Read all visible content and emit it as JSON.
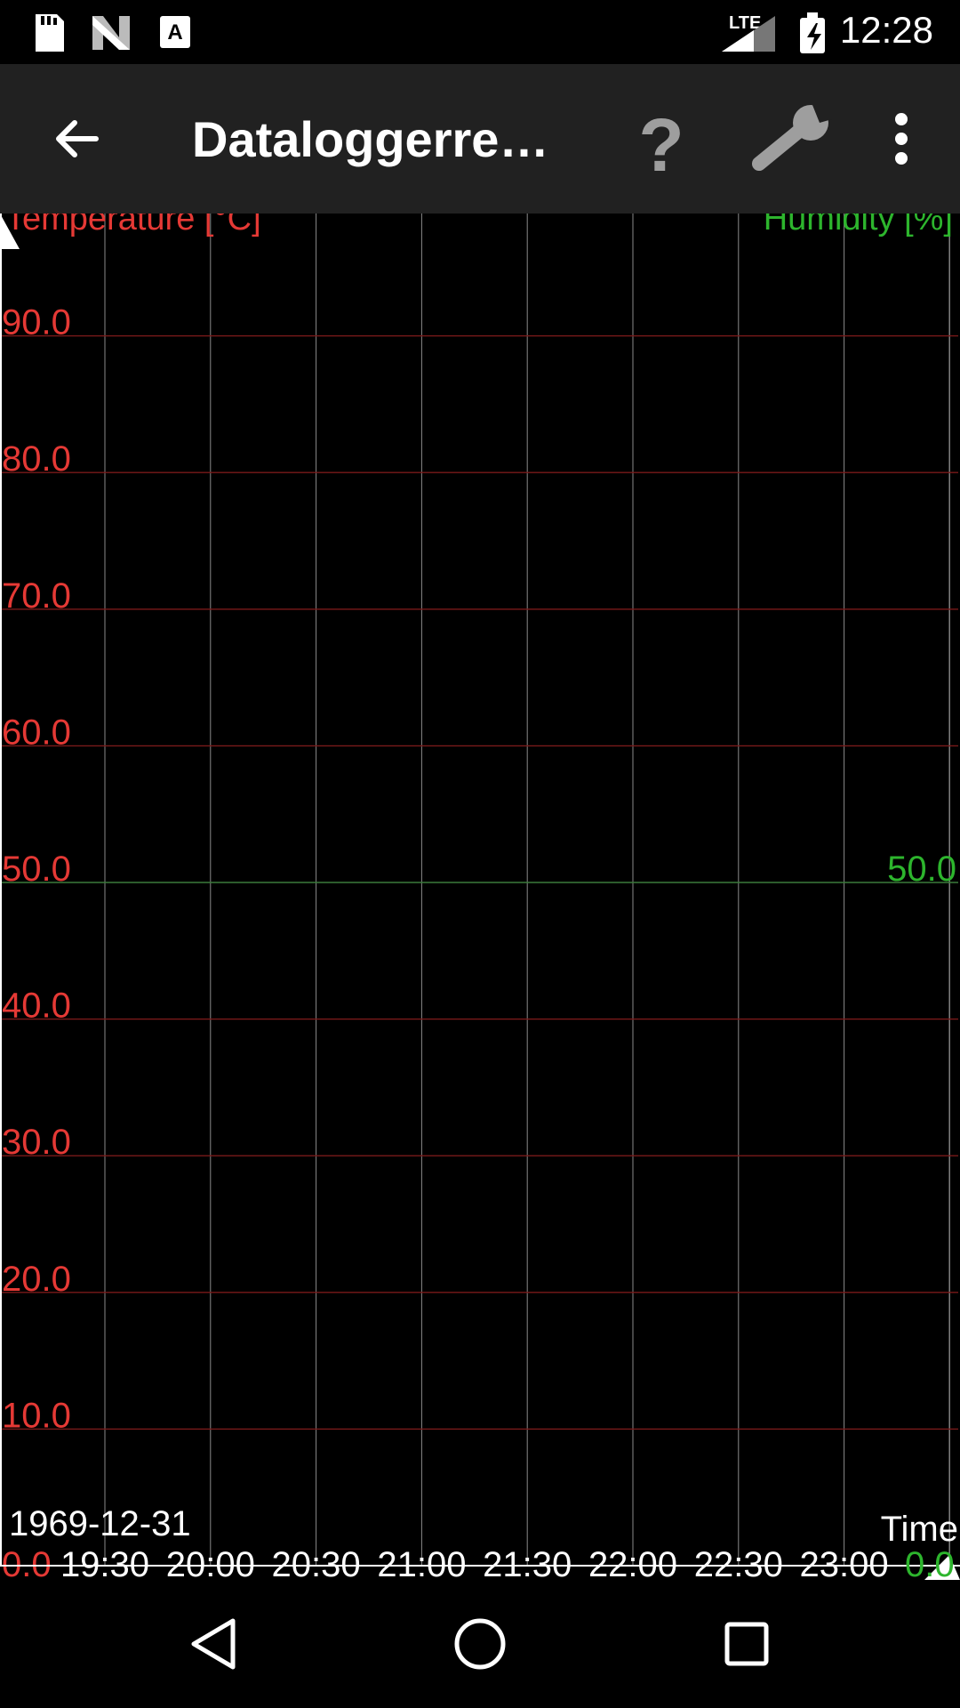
{
  "status_bar": {
    "time": "12:28",
    "network_label": "LTE",
    "icons": [
      "sd-card-icon",
      "n-logo-icon",
      "keyboard-a-icon",
      "signal-icon",
      "battery-charging-icon"
    ]
  },
  "app_bar": {
    "title": "Dataloggerrea…",
    "back_icon": "arrow-left-icon",
    "help_label": "?",
    "settings_icon": "wrench-icon",
    "overflow_icon": "more-vert-icon"
  },
  "chart_data": {
    "type": "line",
    "left_axis": {
      "label": "Temperature [°C]",
      "color": "#e53935",
      "ticks": [
        "0.0",
        "10.0",
        "20.0",
        "30.0",
        "40.0",
        "50.0",
        "60.0",
        "70.0",
        "80.0",
        "90.0"
      ],
      "ylim": [
        0,
        100
      ]
    },
    "right_axis": {
      "label": "Humidity [%]",
      "color": "#2db52d",
      "ticks": [
        "0.0",
        "50.0"
      ],
      "ylim": [
        0,
        100
      ]
    },
    "x_axis": {
      "label": "Time",
      "date": "1969-12-31",
      "ticks": [
        "19:30",
        "20:00",
        "20:30",
        "21:00",
        "21:30",
        "22:00",
        "22:30",
        "23:00"
      ],
      "color": "#ffffff"
    },
    "grid": true,
    "series": []
  },
  "nav_bar": {
    "icons": [
      "back-triangle-icon",
      "home-circle-icon",
      "recents-square-icon"
    ]
  }
}
